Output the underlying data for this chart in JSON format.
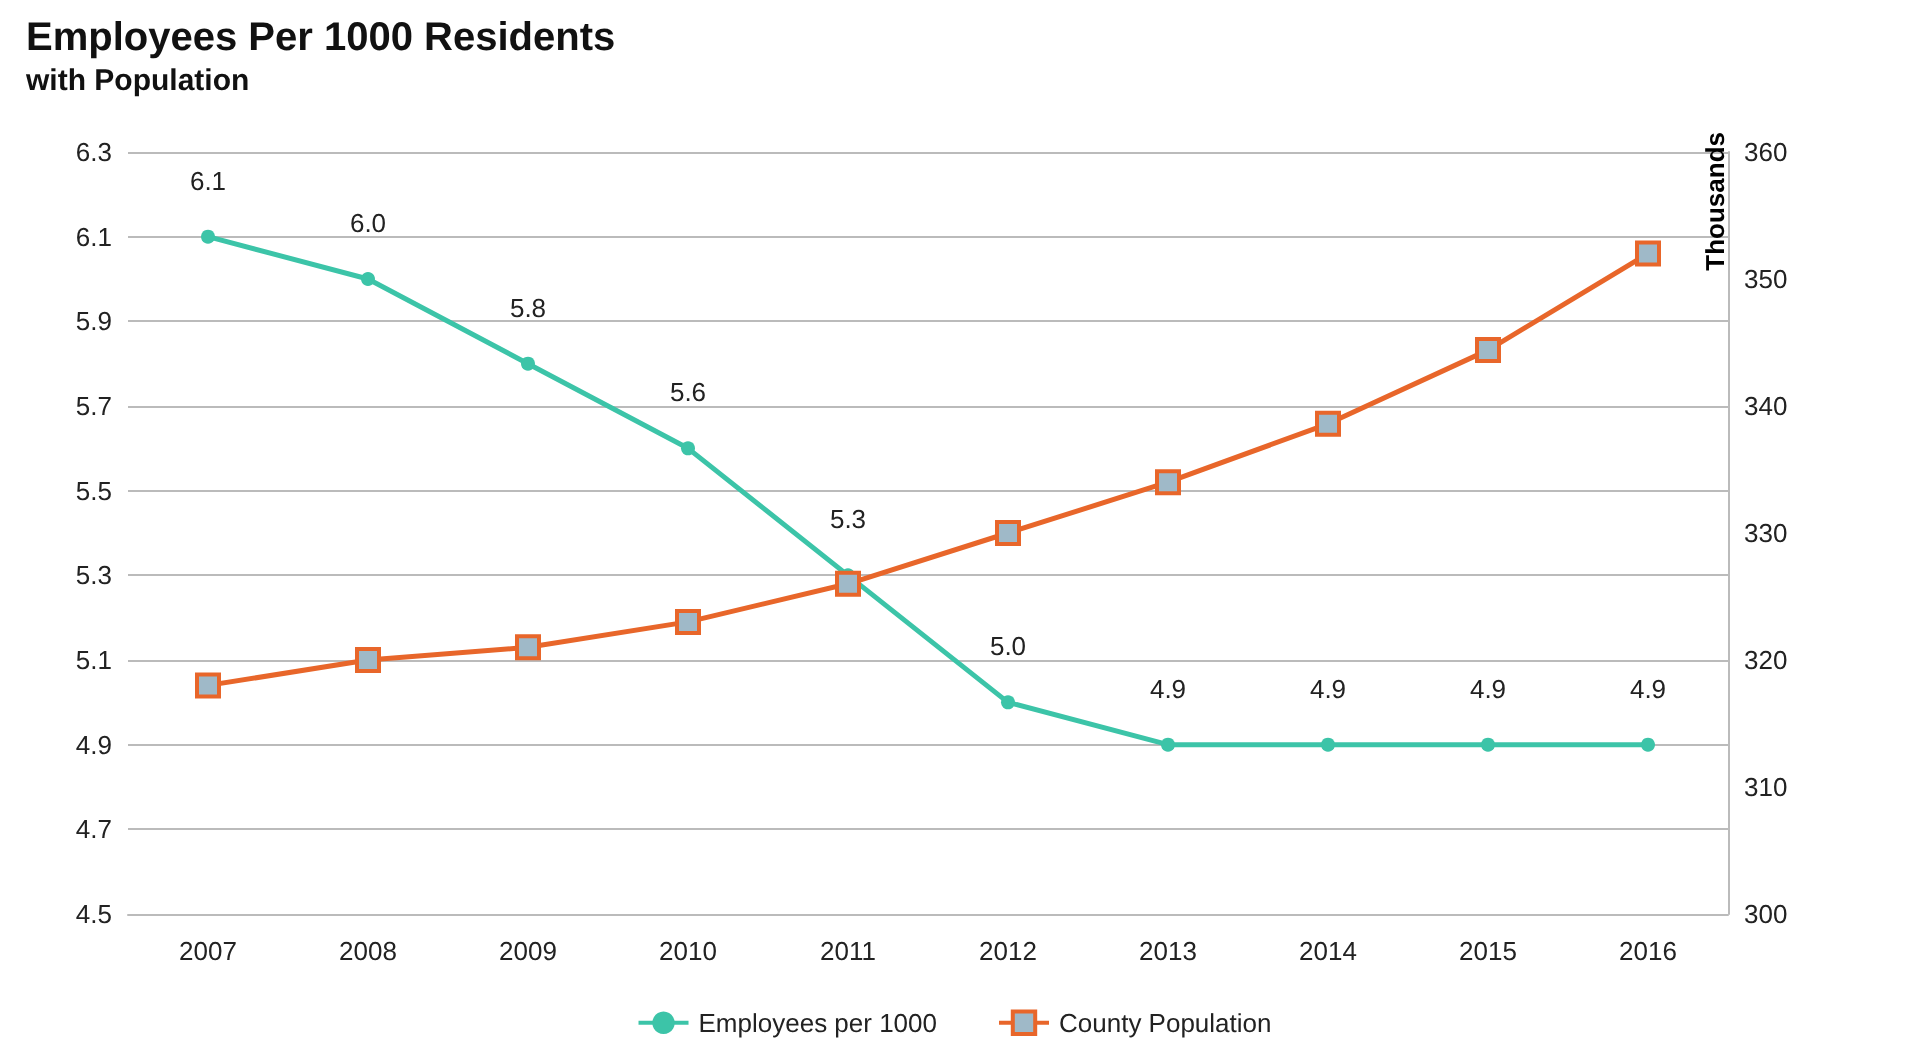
{
  "chart_data": {
    "type": "line",
    "title": "Employees Per 1000 Residents",
    "subtitle": "with Population",
    "y2label": "Thousands",
    "categories": [
      "2007",
      "2008",
      "2009",
      "2010",
      "2011",
      "2012",
      "2013",
      "2014",
      "2015",
      "2016"
    ],
    "series": [
      {
        "name": "Employees per 1000",
        "color": "#3cc4a8",
        "marker": "circle",
        "values": [
          6.1,
          6.0,
          5.8,
          5.6,
          5.3,
          5.0,
          4.9,
          4.9,
          4.9,
          4.9
        ],
        "value_labels": [
          "6.1",
          "6.0",
          "5.8",
          "5.6",
          "5.3",
          "5.0",
          "4.9",
          "4.9",
          "4.9",
          "4.9"
        ]
      },
      {
        "name": "County Population",
        "color": "#e8662a",
        "marker": "square",
        "axis": "y2",
        "values": [
          318,
          320,
          321,
          323,
          326,
          330,
          334,
          338.6,
          344.4,
          352
        ]
      }
    ],
    "ylim": [
      4.5,
      6.3
    ],
    "yticks": [
      4.5,
      4.7,
      4.9,
      5.1,
      5.3,
      5.5,
      5.7,
      5.9,
      6.1,
      6.3
    ],
    "y2lim": [
      300,
      360
    ],
    "y2ticks": [
      300,
      310,
      320,
      330,
      340,
      350,
      360
    ],
    "grid": "y",
    "legend": "bottom"
  }
}
